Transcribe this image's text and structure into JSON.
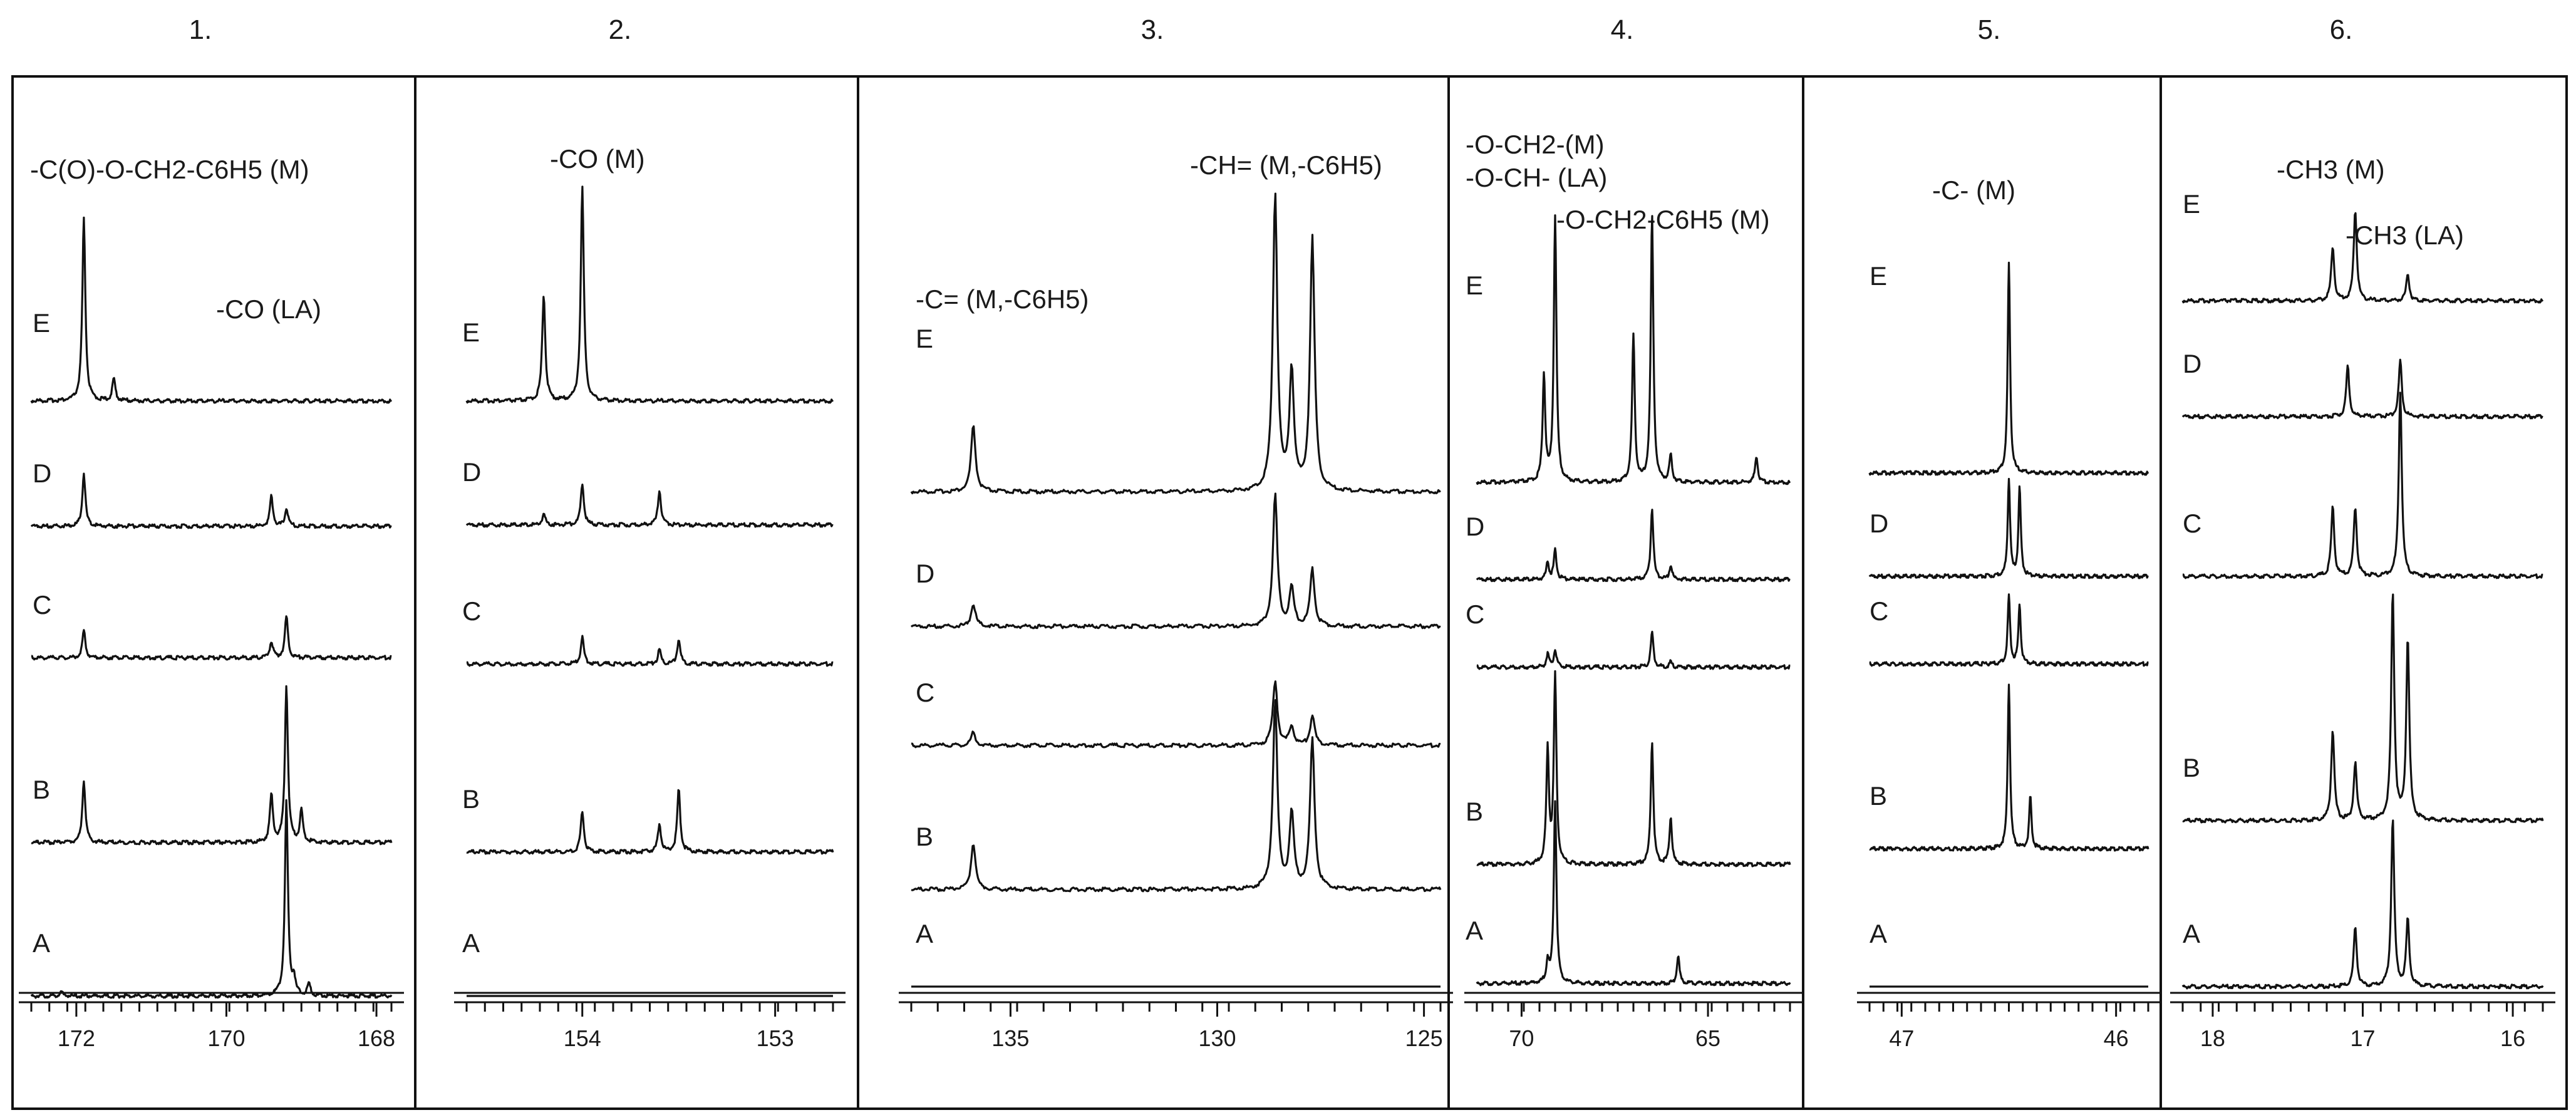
{
  "figure": {
    "panels": [
      {
        "number": "1.",
        "annotations": [
          "-C(O)-O-CH2-C6H5 (M)",
          "-CO (LA)"
        ]
      },
      {
        "number": "2.",
        "annotations": [
          "-CO (M)"
        ]
      },
      {
        "number": "3.",
        "annotations": [
          "-CH= (M,-C6H5)",
          "-C= (M,-C6H5)"
        ]
      },
      {
        "number": "4.",
        "annotations": [
          "-O-CH2-(M)",
          "-O-CH- (LA)",
          "-O-CH2-C6H5 (M)"
        ]
      },
      {
        "number": "5.",
        "annotations": [
          "-C- (M)"
        ]
      },
      {
        "number": "6.",
        "annotations": [
          "-CH3 (M)",
          "-CH3 (LA)"
        ]
      }
    ]
  },
  "chart_data": [
    {
      "type": "line",
      "panel": "1.",
      "x_direction": "decreasing",
      "xlim": [
        172.6,
        167.8
      ],
      "ticks": [
        "172",
        "170",
        "168"
      ],
      "tick_values": [
        172,
        170,
        168
      ],
      "traces": [
        "E",
        "D",
        "C",
        "B",
        "A"
      ],
      "peaks": {
        "E": [
          [
            171.9,
            1.0
          ],
          [
            171.5,
            0.12
          ]
        ],
        "D": [
          [
            171.9,
            0.35
          ],
          [
            169.4,
            0.2
          ],
          [
            169.2,
            0.12
          ]
        ],
        "C": [
          [
            171.9,
            0.2
          ],
          [
            169.4,
            0.12
          ],
          [
            169.2,
            0.3
          ]
        ],
        "B": [
          [
            171.9,
            0.4
          ],
          [
            169.4,
            0.3
          ],
          [
            169.2,
            1.0
          ],
          [
            169.0,
            0.2
          ]
        ],
        "A": [
          [
            169.2,
            1.0
          ],
          [
            169.1,
            0.08
          ],
          [
            168.9,
            0.06
          ],
          [
            172.2,
            0.02
          ]
        ]
      }
    },
    {
      "type": "line",
      "panel": "2.",
      "x_direction": "decreasing",
      "xlim": [
        154.6,
        152.7
      ],
      "ticks": [
        "154",
        "153"
      ],
      "tick_values": [
        154,
        153
      ],
      "traces": [
        "E",
        "D",
        "C",
        "B",
        "A"
      ],
      "peaks": {
        "E": [
          [
            154.2,
            0.5
          ],
          [
            154.0,
            1.0
          ]
        ],
        "D": [
          [
            154.2,
            0.08
          ],
          [
            154.0,
            0.3
          ],
          [
            153.6,
            0.25
          ]
        ],
        "C": [
          [
            154.0,
            0.2
          ],
          [
            153.6,
            0.1
          ],
          [
            153.5,
            0.18
          ]
        ],
        "B": [
          [
            154.0,
            0.3
          ],
          [
            153.6,
            0.2
          ],
          [
            153.5,
            0.45
          ]
        ],
        "A": []
      }
    },
    {
      "type": "line",
      "panel": "3.",
      "x_direction": "decreasing",
      "xlim": [
        137.4,
        124.6
      ],
      "ticks": [
        "135",
        "130",
        "125"
      ],
      "tick_values": [
        135,
        130,
        125
      ],
      "traces": [
        "E",
        "D",
        "C",
        "B",
        "A"
      ],
      "peaks": {
        "E": [
          [
            135.9,
            0.22
          ],
          [
            128.6,
            1.0
          ],
          [
            128.2,
            0.4
          ],
          [
            127.7,
            0.85
          ]
        ],
        "D": [
          [
            135.9,
            0.12
          ],
          [
            128.6,
            0.7
          ],
          [
            128.2,
            0.2
          ],
          [
            127.7,
            0.3
          ]
        ],
        "C": [
          [
            135.9,
            0.08
          ],
          [
            128.6,
            0.4
          ],
          [
            128.2,
            0.12
          ],
          [
            127.7,
            0.18
          ]
        ],
        "B": [
          [
            135.9,
            0.25
          ],
          [
            128.6,
            1.0
          ],
          [
            128.2,
            0.4
          ],
          [
            127.7,
            0.8
          ]
        ],
        "A": []
      }
    },
    {
      "type": "line",
      "panel": "4.",
      "x_direction": "decreasing",
      "xlim": [
        71.2,
        62.8
      ],
      "ticks": [
        "70",
        "65"
      ],
      "tick_values": [
        70,
        65
      ],
      "traces": [
        "E",
        "D",
        "C",
        "B",
        "A"
      ],
      "peaks": {
        "E": [
          [
            69.4,
            0.4
          ],
          [
            69.1,
            1.0
          ],
          [
            67.0,
            0.55
          ],
          [
            66.5,
            1.0
          ],
          [
            66.0,
            0.1
          ],
          [
            63.7,
            0.1
          ]
        ],
        "D": [
          [
            69.3,
            0.15
          ],
          [
            69.1,
            0.25
          ],
          [
            66.5,
            0.6
          ],
          [
            66.0,
            0.12
          ]
        ],
        "C": [
          [
            69.3,
            0.15
          ],
          [
            69.1,
            0.2
          ],
          [
            66.5,
            0.4
          ],
          [
            66.0,
            0.06
          ]
        ],
        "B": [
          [
            69.3,
            0.6
          ],
          [
            69.1,
            1.0
          ],
          [
            66.5,
            0.65
          ],
          [
            66.0,
            0.25
          ]
        ],
        "A": [
          [
            69.3,
            0.12
          ],
          [
            69.1,
            1.0
          ],
          [
            65.8,
            0.15
          ]
        ]
      }
    },
    {
      "type": "line",
      "panel": "5.",
      "x_direction": "decreasing",
      "xlim": [
        47.15,
        45.85
      ],
      "ticks": [
        "47",
        "46"
      ],
      "tick_values": [
        47,
        46
      ],
      "traces": [
        "E",
        "D",
        "C",
        "B",
        "A"
      ],
      "peaks": {
        "E": [
          [
            46.5,
            1.0
          ]
        ],
        "D": [
          [
            46.5,
            0.55
          ],
          [
            46.45,
            0.5
          ]
        ],
        "C": [
          [
            46.5,
            0.4
          ],
          [
            46.45,
            0.35
          ]
        ],
        "B": [
          [
            46.5,
            0.8
          ],
          [
            46.4,
            0.25
          ]
        ],
        "A": []
      }
    },
    {
      "type": "line",
      "panel": "6.",
      "x_direction": "decreasing",
      "xlim": [
        18.2,
        15.8
      ],
      "ticks": [
        "18",
        "17",
        "16"
      ],
      "tick_values": [
        18,
        17,
        16
      ],
      "traces": [
        "E",
        "D",
        "C",
        "B",
        "A"
      ],
      "peaks": {
        "E": [
          [
            17.2,
            0.6
          ],
          [
            17.05,
            1.0
          ],
          [
            16.7,
            0.3
          ]
        ],
        "D": [
          [
            17.1,
            0.45
          ],
          [
            16.75,
            0.5
          ]
        ],
        "C": [
          [
            17.2,
            0.3
          ],
          [
            17.05,
            0.3
          ],
          [
            16.75,
            0.8
          ]
        ],
        "B": [
          [
            17.2,
            0.4
          ],
          [
            17.05,
            0.25
          ],
          [
            16.8,
            1.0
          ],
          [
            16.7,
            0.8
          ]
        ],
        "A": [
          [
            17.05,
            0.35
          ],
          [
            16.8,
            1.0
          ],
          [
            16.7,
            0.4
          ]
        ]
      }
    }
  ]
}
